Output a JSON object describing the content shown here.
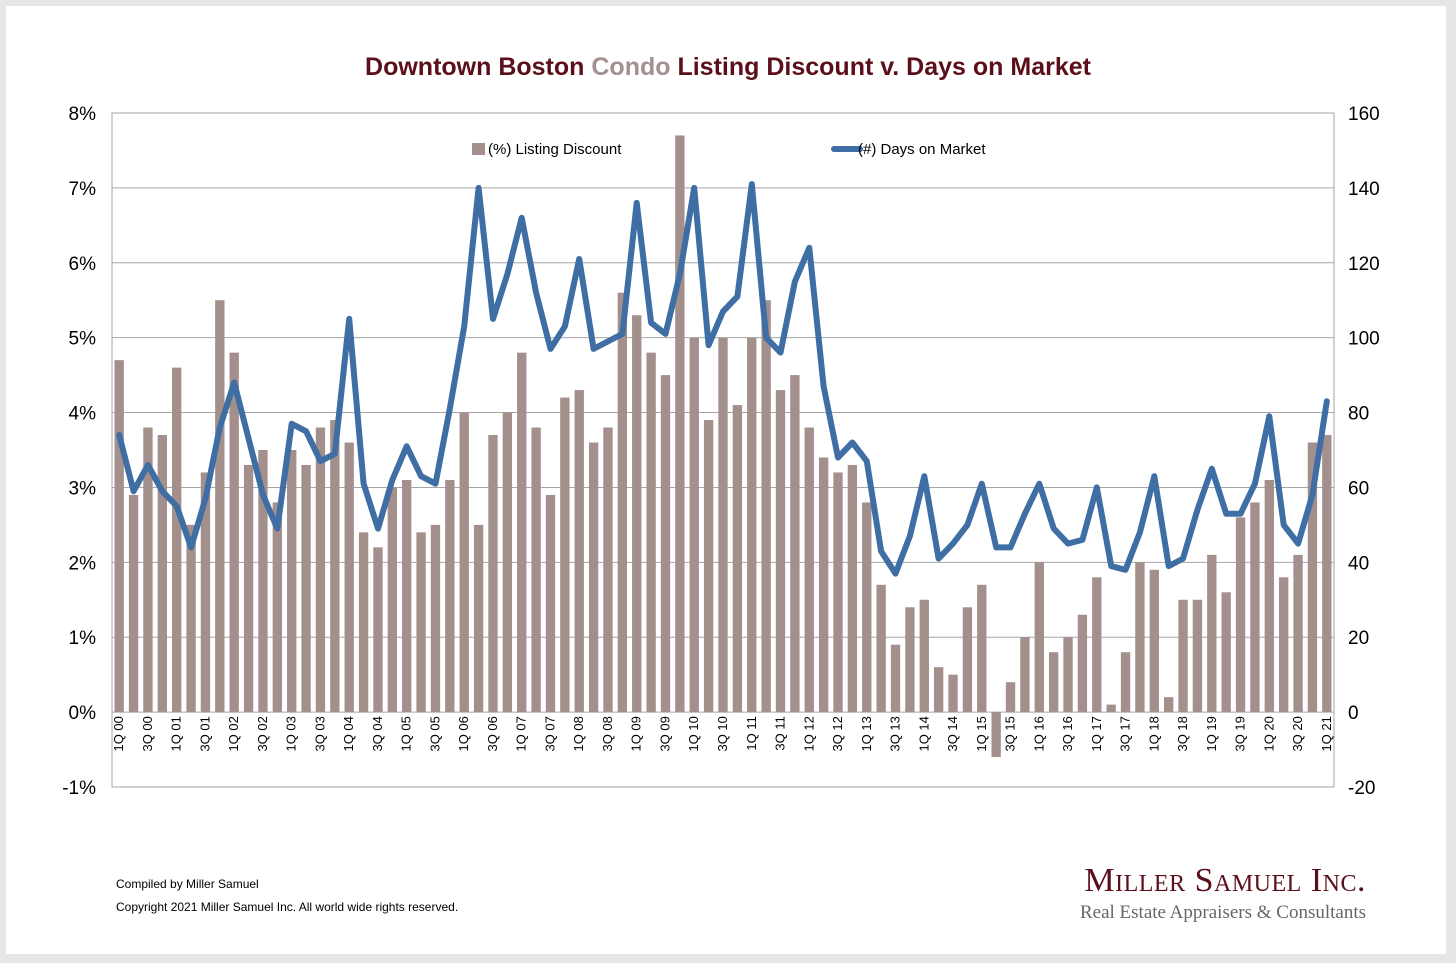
{
  "title": {
    "part1": "Downtown Boston ",
    "part2": "Condo",
    "part3": " Listing Discount v. Days on Market"
  },
  "colors": {
    "bar": "#a38f8c",
    "line": "#3f6ea4",
    "title": "#5b0f1a",
    "highlight": "#a39090",
    "grid": "#a6a6a6"
  },
  "footer": {
    "compiled": "Compiled by Miller Samuel",
    "copyright": "Copyright 2021 Miller Samuel Inc.  All world wide rights reserved."
  },
  "brand": {
    "name": "Miller Samuel Inc.",
    "tagline": "Real Estate Appraisers & Consultants"
  },
  "chart_data": {
    "type": "bar+line",
    "title": "Downtown Boston Condo Listing Discount v. Days on Market",
    "left_axis": {
      "min": -1,
      "max": 8,
      "step": 1,
      "unit": "%",
      "ticks": [
        "-1%",
        "0%",
        "1%",
        "2%",
        "3%",
        "4%",
        "5%",
        "6%",
        "7%",
        "8%"
      ]
    },
    "right_axis": {
      "min": -20,
      "max": 160,
      "step": 20,
      "ticks": [
        "-20",
        "0",
        "20",
        "40",
        "60",
        "80",
        "100",
        "120",
        "140",
        "160"
      ]
    },
    "legend": {
      "position": "top-center",
      "bar_label": "(%) Listing Discount",
      "line_label": "(#) Days on Market"
    },
    "categories": [
      "1Q 00",
      "",
      "3Q 00",
      "",
      "1Q 01",
      "",
      "3Q 01",
      "",
      "1Q 02",
      "",
      "3Q 02",
      "",
      "1Q 03",
      "",
      "3Q 03",
      "",
      "1Q 04",
      "",
      "3Q 04",
      "",
      "1Q 05",
      "",
      "3Q 05",
      "",
      "1Q 06",
      "",
      "3Q 06",
      "",
      "1Q 07",
      "",
      "3Q 07",
      "",
      "1Q 08",
      "",
      "3Q 08",
      "",
      "1Q 09",
      "",
      "3Q 09",
      "",
      "1Q 10",
      "",
      "3Q 10",
      "",
      "1Q 11",
      "",
      "3Q 11",
      "",
      "1Q 12",
      "",
      "3Q 12",
      "",
      "1Q 13",
      "",
      "3Q 13",
      "",
      "1Q 14",
      "",
      "3Q 14",
      "",
      "1Q 15",
      "",
      "3Q 15",
      "",
      "1Q 16",
      "",
      "3Q 16",
      "",
      "1Q 17",
      "",
      "3Q 17",
      "",
      "1Q 18",
      "",
      "3Q 18",
      "",
      "1Q 19",
      "",
      "3Q 19",
      "",
      "1Q 20",
      "",
      "3Q 20",
      "",
      "1Q 21"
    ],
    "series": [
      {
        "name": "(%) Listing Discount",
        "axis": "left",
        "kind": "bar",
        "values": [
          4.7,
          2.9,
          3.8,
          3.7,
          4.6,
          2.5,
          3.2,
          5.5,
          4.8,
          3.3,
          3.5,
          2.8,
          3.5,
          3.3,
          3.8,
          3.9,
          3.6,
          2.4,
          2.2,
          3.0,
          3.1,
          2.4,
          2.5,
          3.1,
          4.0,
          2.5,
          3.7,
          4.0,
          4.8,
          3.8,
          2.9,
          4.2,
          4.3,
          3.6,
          3.8,
          5.6,
          5.3,
          4.8,
          4.5,
          7.7,
          5.0,
          3.9,
          5.0,
          4.1,
          5.0,
          5.5,
          4.3,
          4.5,
          3.8,
          3.4,
          3.2,
          3.3,
          2.8,
          1.7,
          0.9,
          1.4,
          1.5,
          0.6,
          0.5,
          1.4,
          1.7,
          -0.6,
          0.4,
          1.0,
          2.0,
          0.8,
          1.0,
          1.3,
          1.8,
          0.1,
          0.8,
          2.0,
          1.9,
          0.2,
          1.5,
          1.5,
          2.1,
          1.6,
          2.6,
          2.8,
          3.1,
          1.8,
          2.1,
          3.6,
          3.7
        ]
      },
      {
        "name": "(#) Days on Market",
        "axis": "right",
        "kind": "line",
        "values": [
          74,
          59,
          66,
          59,
          55,
          44,
          57,
          76,
          88,
          73,
          58,
          49,
          77,
          75,
          67,
          69,
          105,
          61,
          49,
          62,
          71,
          63,
          61,
          81,
          103,
          140,
          105,
          117,
          132,
          112,
          97,
          103,
          121,
          97,
          99,
          101,
          136,
          104,
          101,
          117,
          140,
          98,
          107,
          111,
          141,
          100,
          96,
          115,
          124,
          87,
          68,
          72,
          67,
          43,
          37,
          47,
          63,
          41,
          45,
          50,
          61,
          44,
          44,
          53,
          61,
          49,
          45,
          46,
          60,
          39,
          38,
          48,
          63,
          39,
          41,
          54,
          65,
          53,
          53,
          61,
          79,
          50,
          45,
          58,
          83
        ]
      }
    ]
  }
}
